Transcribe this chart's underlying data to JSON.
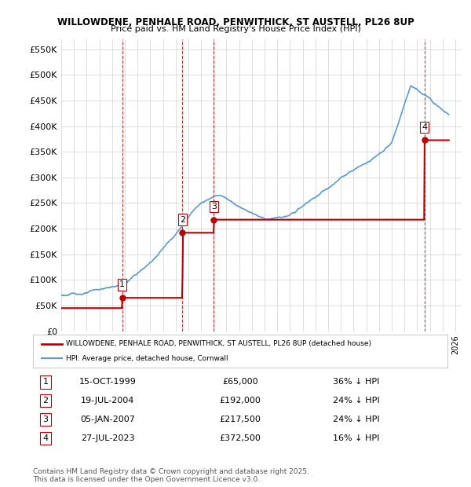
{
  "title1": "WILLOWDENE, PENHALE ROAD, PENWITHICK, ST AUSTELL, PL26 8UP",
  "title2": "Price paid vs. HM Land Registry's House Price Index (HPI)",
  "ylabel": "",
  "ylim": [
    0,
    570000
  ],
  "yticks": [
    0,
    50000,
    100000,
    150000,
    200000,
    250000,
    300000,
    350000,
    400000,
    450000,
    500000,
    550000
  ],
  "ytick_labels": [
    "£0",
    "£50K",
    "£100K",
    "£150K",
    "£200K",
    "£250K",
    "£300K",
    "£350K",
    "£400K",
    "£450K",
    "£500K",
    "£550K"
  ],
  "xlim_start": 1995.0,
  "xlim_end": 2026.5,
  "hpi_color": "#5b9bd5",
  "price_color": "#c00000",
  "transaction_color": "#c00000",
  "vline_color": "#c00000",
  "grid_color": "#d0d0d0",
  "bg_color": "#ffffff",
  "transactions": [
    {
      "num": 1,
      "date_str": "15-OCT-1999",
      "date_x": 1999.79,
      "price": 65000,
      "label": "1",
      "pct": "36%",
      "dir": "↓"
    },
    {
      "num": 2,
      "date_str": "19-JUL-2004",
      "date_x": 2004.54,
      "price": 192000,
      "label": "2",
      "pct": "24%",
      "dir": "↓"
    },
    {
      "num": 3,
      "date_str": "05-JAN-2007",
      "date_x": 2007.01,
      "price": 217500,
      "label": "3",
      "pct": "24%",
      "dir": "↓"
    },
    {
      "num": 4,
      "date_str": "27-JUL-2023",
      "date_x": 2023.57,
      "price": 372500,
      "label": "4",
      "pct": "16%",
      "dir": "↓"
    }
  ],
  "legend_line1": "WILLOWDENE, PENHALE ROAD, PENWITHICK, ST AUSTELL, PL26 8UP (detached house)",
  "legend_line2": "HPI: Average price, detached house, Cornwall",
  "footer1": "Contains HM Land Registry data © Crown copyright and database right 2025.",
  "footer2": "This data is licensed under the Open Government Licence v3.0."
}
